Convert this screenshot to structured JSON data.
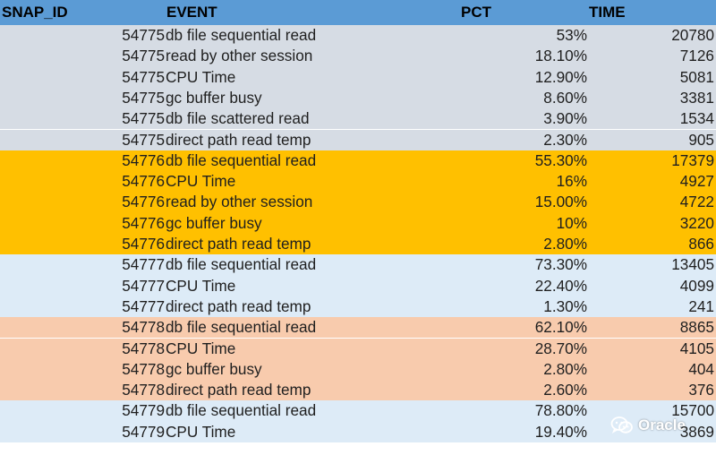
{
  "colors": {
    "header": "#5b9bd5",
    "group_54775": "#d6dce4",
    "group_54776": "#ffc000",
    "group_54777": "#ddebf7",
    "group_54778": "#f8cbad",
    "group_54779": "#ddebf7"
  },
  "table": {
    "headers": {
      "snap_id": "SNAP_ID",
      "event": "EVENT",
      "pct": "PCT",
      "time": "TIME"
    },
    "rows": [
      {
        "snap_id": "54775",
        "event": "db file sequential read",
        "pct": "53%",
        "time": "20780"
      },
      {
        "snap_id": "54775",
        "event": "read by other session",
        "pct": "18.10%",
        "time": "7126"
      },
      {
        "snap_id": "54775",
        "event": "CPU Time",
        "pct": "12.90%",
        "time": "5081"
      },
      {
        "snap_id": "54775",
        "event": "gc buffer busy",
        "pct": "8.60%",
        "time": "3381"
      },
      {
        "snap_id": "54775",
        "event": "db file scattered read",
        "pct": "3.90%",
        "time": "1534"
      },
      {
        "snap_id": "54775",
        "event": "direct path read temp",
        "pct": "2.30%",
        "time": "905"
      },
      {
        "snap_id": "54776",
        "event": "db file sequential read",
        "pct": "55.30%",
        "time": "17379"
      },
      {
        "snap_id": "54776",
        "event": "CPU Time",
        "pct": "16%",
        "time": "4927"
      },
      {
        "snap_id": "54776",
        "event": "read by other session",
        "pct": "15.00%",
        "time": "4722"
      },
      {
        "snap_id": "54776",
        "event": "gc buffer busy",
        "pct": "10%",
        "time": "3220"
      },
      {
        "snap_id": "54776",
        "event": "direct path read temp",
        "pct": "2.80%",
        "time": "866"
      },
      {
        "snap_id": "54777",
        "event": "db file sequential read",
        "pct": "73.30%",
        "time": "13405"
      },
      {
        "snap_id": "54777",
        "event": "CPU Time",
        "pct": "22.40%",
        "time": "4099"
      },
      {
        "snap_id": "54777",
        "event": "direct path read temp",
        "pct": "1.30%",
        "time": "241"
      },
      {
        "snap_id": "54778",
        "event": "db file sequential read",
        "pct": "62.10%",
        "time": "8865"
      },
      {
        "snap_id": "54778",
        "event": "CPU Time",
        "pct": "28.70%",
        "time": "4105"
      },
      {
        "snap_id": "54778",
        "event": "gc buffer busy",
        "pct": "2.80%",
        "time": "404"
      },
      {
        "snap_id": "54778",
        "event": "direct path read temp",
        "pct": "2.60%",
        "time": "376"
      },
      {
        "snap_id": "54779",
        "event": "db file sequential read",
        "pct": "78.80%",
        "time": "15700"
      },
      {
        "snap_id": "54779",
        "event": "CPU Time",
        "pct": "19.40%",
        "time": "3869"
      }
    ]
  },
  "watermark": {
    "icon": "wechat-icon",
    "text": "Oracle"
  }
}
